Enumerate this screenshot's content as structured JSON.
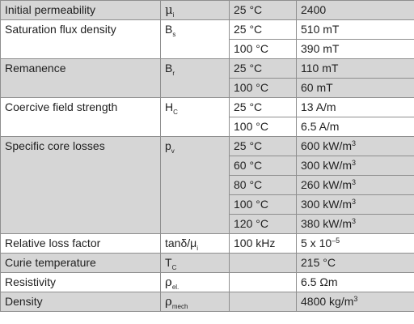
{
  "rows": [
    {
      "property": "Initial permeability",
      "symbol": "μ",
      "symbol_sub": "i",
      "conditions": [
        {
          "cond": "25 °C",
          "value": "2400"
        }
      ]
    },
    {
      "property": "Saturation flux density",
      "symbol": "B",
      "symbol_sub": "s",
      "conditions": [
        {
          "cond": "25 °C",
          "value": "510 mT"
        },
        {
          "cond": "100 °C",
          "value": "390 mT"
        }
      ]
    },
    {
      "property": "Remanence",
      "symbol": "B",
      "symbol_sub": "r",
      "conditions": [
        {
          "cond": "25 °C",
          "value": "110 mT"
        },
        {
          "cond": "100 °C",
          "value": "60 mT"
        }
      ]
    },
    {
      "property": "Coercive field strength",
      "symbol": "H",
      "symbol_sub": "C",
      "conditions": [
        {
          "cond": "25 °C",
          "value": "13 A/m"
        },
        {
          "cond": "100 °C",
          "value": "6.5 A/m"
        }
      ]
    },
    {
      "property": "Specific core losses",
      "symbol": "p",
      "symbol_sub": "v",
      "conditions": [
        {
          "cond": "25 °C",
          "value": "600 kW/m",
          "value_sup": "3"
        },
        {
          "cond": "60 °C",
          "value": "300 kW/m",
          "value_sup": "3"
        },
        {
          "cond": "80 °C",
          "value": "260 kW/m",
          "value_sup": "3"
        },
        {
          "cond": "100 °C",
          "value": "300 kW/m",
          "value_sup": "3"
        },
        {
          "cond": "120 °C",
          "value": "380 kW/m",
          "value_sup": "3"
        }
      ]
    },
    {
      "property": "Relative loss factor",
      "symbol": "tanδ/μ",
      "symbol_sub": "i",
      "conditions": [
        {
          "cond": "100 kHz",
          "value": "5 x 10",
          "value_sup": "–5"
        }
      ]
    },
    {
      "property": "Curie temperature",
      "symbol": "T",
      "symbol_sub": "C",
      "conditions": [
        {
          "cond": "",
          "value": "215 °C"
        }
      ]
    },
    {
      "property": "Resistivity",
      "symbol": "ρ",
      "symbol_sub": "el.",
      "conditions": [
        {
          "cond": "",
          "value": "6.5 Ωm"
        }
      ]
    },
    {
      "property": "Density",
      "symbol": "ρ",
      "symbol_sub": "mech",
      "conditions": [
        {
          "cond": "",
          "value": "4800 kg/m",
          "value_sup": "3"
        }
      ]
    }
  ],
  "colors": {
    "band": "#d6d6d6",
    "border": "#8f8f8f",
    "text": "#1f1f1f"
  }
}
